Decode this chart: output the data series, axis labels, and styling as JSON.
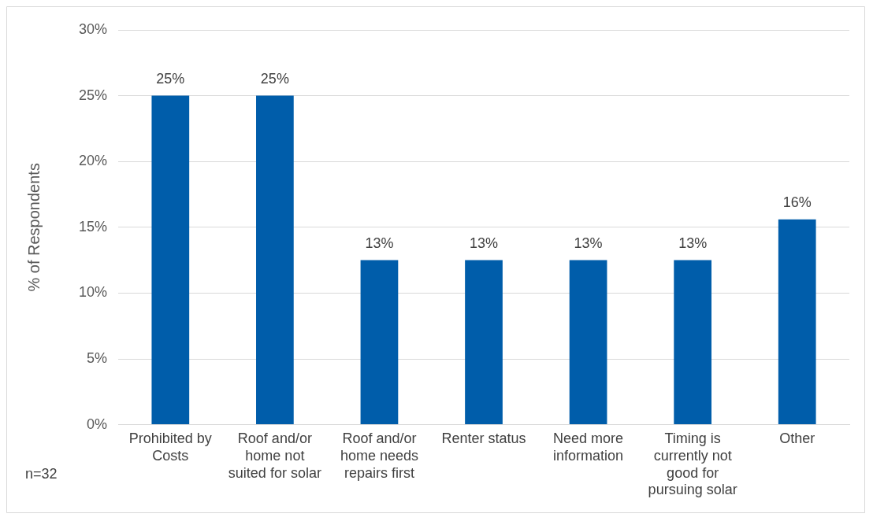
{
  "chart_data": {
    "type": "bar",
    "ylabel": "% of Respondents",
    "categories": [
      "Prohibited by Costs",
      "Roof and/or home not suited for solar",
      "Roof and/or home needs repairs first",
      "Renter status",
      "Need more information",
      "Timing is currently not good for pursuing solar",
      "Other"
    ],
    "values": [
      25,
      25,
      12.5,
      12.5,
      12.5,
      12.5,
      15.6
    ],
    "value_labels": [
      "25%",
      "25%",
      "13%",
      "13%",
      "13%",
      "13%",
      "16%"
    ],
    "color": "#005daa",
    "ylim": [
      0,
      30
    ],
    "yticks": [
      {
        "value": 0,
        "label": "0%"
      },
      {
        "value": 5,
        "label": "5%"
      },
      {
        "value": 10,
        "label": "10%"
      },
      {
        "value": 15,
        "label": "15%"
      },
      {
        "value": 20,
        "label": "20%"
      },
      {
        "value": 25,
        "label": "25%"
      },
      {
        "value": 30,
        "label": "30%"
      }
    ],
    "grid": "y",
    "annotations": [
      "n=32"
    ]
  }
}
